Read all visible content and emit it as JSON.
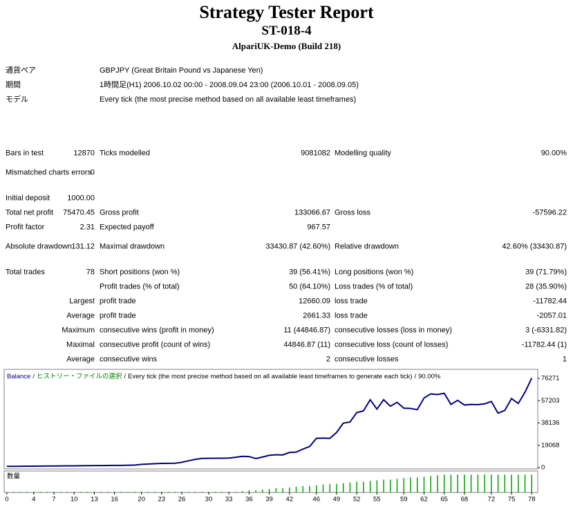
{
  "header": {
    "title": "Strategy Tester Report",
    "subtitle": "ST-018-4",
    "server": "AlpariUK-Demo (Build 218)"
  },
  "info": [
    {
      "label": "通貨ペア",
      "value": "GBPJPY (Great Britain Pound vs Japanese Yen)"
    },
    {
      "label": "期間",
      "value": "1時間足(H1) 2006.10.02 00:00 - 2008.09.04 23:00 (2006.10.01 - 2008.09.05)"
    },
    {
      "label": "モデル",
      "value": "Every tick (the most precise method based on all available least timeframes)"
    }
  ],
  "stats": {
    "rows": [
      [
        "Bars in test",
        "12870",
        "Ticks modelled",
        "9081082",
        "Modelling quality",
        "90.00%"
      ],
      [
        "Mismatched charts errors",
        "0",
        null,
        null,
        null,
        null
      ],
      [
        "Initial deposit",
        "1000.00",
        null,
        null,
        null,
        null
      ],
      [
        "Total net profit",
        "75470.45",
        "Gross profit",
        "133066.67",
        "Gross loss",
        "-57596.22"
      ],
      [
        "Profit factor",
        "2.31",
        "Expected payoff",
        "967.57",
        null,
        null
      ],
      [
        "Absolute drawdown",
        "131.12",
        "Maximal drawdown",
        "33430.87 (42.60%)",
        "Relative drawdown",
        "42.60% (33430.87)"
      ],
      [
        "Total trades",
        "78",
        "Short positions (won %)",
        "39 (56.41%)",
        "Long positions (won %)",
        "39 (71.79%)"
      ],
      [
        null,
        null,
        "Profit trades (% of total)",
        "50 (64.10%)",
        "Loss trades (% of total)",
        "28 (35.90%)"
      ],
      [
        null,
        "Largest",
        "profit trade",
        "12660.09",
        "loss trade",
        "-11782.44"
      ],
      [
        null,
        "Average",
        "profit trade",
        "2661.33",
        "loss trade",
        "-2057.01"
      ],
      [
        null,
        "Maximum",
        "consecutive wins (profit in money)",
        "11 (44846.87)",
        "consecutive losses (loss in money)",
        "3 (-6331.82)"
      ],
      [
        null,
        "Maximal",
        "consecutive profit (count of wins)",
        "44846.87 (11)",
        "consecutive loss (count of losses)",
        "-11782.44 (1)"
      ],
      [
        null,
        "Average",
        "consecutive wins",
        "2",
        "consecutive losses",
        "1"
      ]
    ]
  },
  "chart_data": [
    {
      "type": "line",
      "separator": "/",
      "source": "ヒストリー・ファイルの選択",
      "subtitle": "Every tick (the most precise method based on all available least timeframes to generate each tick)",
      "quality": "90.00%",
      "x": [
        0,
        1,
        2,
        3,
        4,
        5,
        6,
        7,
        8,
        9,
        10,
        11,
        12,
        13,
        14,
        15,
        16,
        17,
        18,
        19,
        20,
        21,
        22,
        23,
        24,
        25,
        26,
        27,
        28,
        29,
        30,
        31,
        32,
        33,
        34,
        35,
        36,
        37,
        38,
        39,
        40,
        41,
        42,
        43,
        44,
        45,
        46,
        47,
        48,
        49,
        50,
        51,
        52,
        53,
        54,
        55,
        56,
        57,
        58,
        59,
        60,
        61,
        62,
        63,
        64,
        65,
        66,
        67,
        68,
        69,
        70,
        71,
        72,
        73,
        74,
        75,
        76,
        77,
        78
      ],
      "series": [
        {
          "name": "Balance",
          "color": "#000080",
          "values": [
            1000,
            1050,
            1100,
            1150,
            1200,
            1250,
            1300,
            1350,
            1400,
            1450,
            1500,
            1550,
            1600,
            1650,
            1700,
            1750,
            1800,
            1850,
            2000,
            2100,
            2700,
            3000,
            3300,
            3500,
            3600,
            3700,
            4500,
            5800,
            7000,
            7800,
            7900,
            7950,
            8000,
            8100,
            8800,
            9600,
            9400,
            7700,
            9000,
            10500,
            10900,
            10800,
            12900,
            13200,
            15800,
            18000,
            25000,
            25200,
            25000,
            30000,
            38000,
            39000,
            47000,
            48500,
            58000,
            50000,
            58000,
            52500,
            55800,
            50800,
            50600,
            49500,
            59500,
            63000,
            62500,
            63500,
            54000,
            57500,
            53500,
            54000,
            53800,
            54500,
            56500,
            46500,
            48900,
            59000,
            54800,
            64400,
            76470
          ]
        }
      ],
      "source_color": "#008000",
      "xlim": [
        -0.4,
        78.9
      ],
      "ylim": [
        -1200,
        84000
      ],
      "yticks": [
        0,
        19068,
        38136,
        57203,
        76271
      ]
    },
    {
      "type": "bar",
      "title": "数量",
      "color": "#00a000",
      "x": [
        1,
        2,
        3,
        4,
        5,
        6,
        7,
        8,
        9,
        10,
        11,
        12,
        13,
        14,
        15,
        16,
        17,
        18,
        19,
        20,
        21,
        22,
        23,
        24,
        25,
        26,
        27,
        28,
        29,
        30,
        31,
        32,
        33,
        34,
        35,
        36,
        37,
        38,
        39,
        40,
        41,
        42,
        43,
        44,
        45,
        46,
        47,
        48,
        49,
        50,
        51,
        52,
        53,
        54,
        55,
        56,
        57,
        58,
        59,
        60,
        61,
        62,
        63,
        64,
        65,
        66,
        67,
        68,
        69,
        70,
        71,
        72,
        73,
        74,
        75,
        76,
        77,
        78
      ],
      "values": [
        0.1,
        0.1,
        0.1,
        0.1,
        0.1,
        0.1,
        0.1,
        0.1,
        0.1,
        0.1,
        0.1,
        0.1,
        0.1,
        0.1,
        0.1,
        0.1,
        0.1,
        0.1,
        0.1,
        0.1,
        0.1,
        0.1,
        0.1,
        0.1,
        0.1,
        0.1,
        0.1,
        0.1,
        0.1,
        0.1,
        0.1,
        0.1,
        0.1,
        0.1,
        0.2,
        0.3,
        0.3,
        0.4,
        0.5,
        0.6,
        0.6,
        0.7,
        0.8,
        0.9,
        0.9,
        1.0,
        1.1,
        1.2,
        1.2,
        1.3,
        1.4,
        1.5,
        1.5,
        1.6,
        1.7,
        1.8,
        1.8,
        1.9,
        2.0,
        2.1,
        2.1,
        2.2,
        2.3,
        2.4,
        2.5,
        2.5,
        2.5,
        2.5,
        2.5,
        2.5,
        2.5,
        2.5,
        2.5,
        2.5,
        2.5,
        2.5,
        2.5,
        2.5
      ],
      "xlim": [
        -0.4,
        78.9
      ],
      "ylim": [
        0,
        2.8
      ],
      "xticks": [
        0,
        4,
        7,
        10,
        13,
        16,
        20,
        23,
        26,
        30,
        33,
        36,
        39,
        42,
        46,
        49,
        52,
        55,
        59,
        62,
        65,
        68,
        72,
        75,
        78
      ]
    }
  ]
}
